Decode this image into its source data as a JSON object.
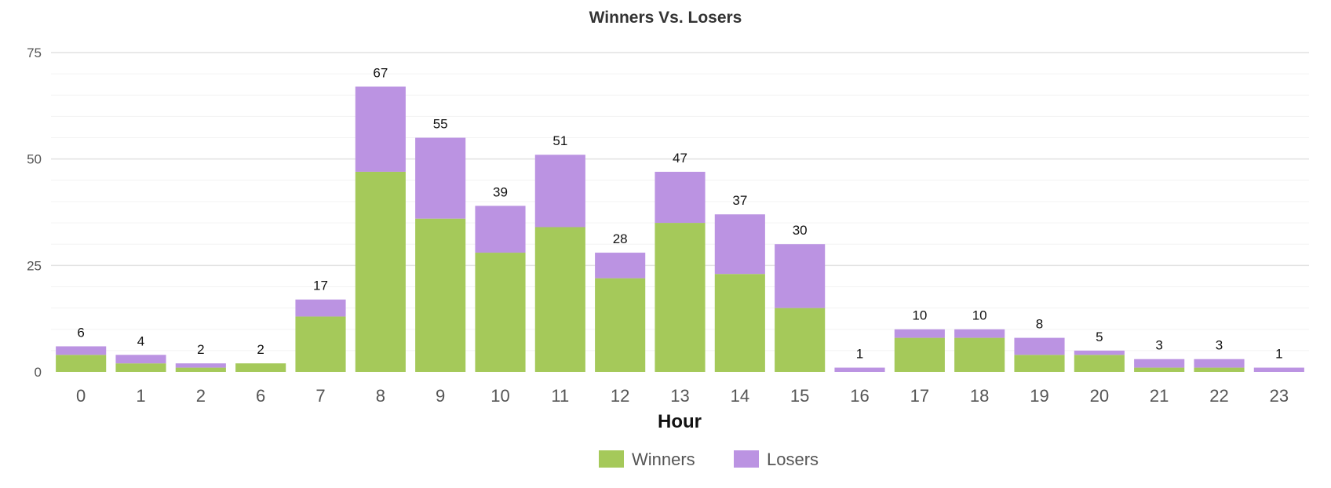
{
  "chart_data": {
    "type": "bar",
    "stacked": true,
    "title": "Winners Vs. Losers",
    "xlabel": "Hour",
    "ylabel": "",
    "ylim": [
      0,
      75
    ],
    "yticks": [
      0,
      25,
      50,
      75
    ],
    "grid": true,
    "legend_position": "bottom-center",
    "categories": [
      "0",
      "1",
      "2",
      "6",
      "7",
      "8",
      "9",
      "10",
      "11",
      "12",
      "13",
      "14",
      "15",
      "16",
      "17",
      "18",
      "19",
      "20",
      "21",
      "22",
      "23"
    ],
    "series": [
      {
        "name": "Winners",
        "color": "#a5c95a",
        "values": [
          4,
          2,
          1,
          2,
          13,
          47,
          36,
          28,
          34,
          22,
          35,
          23,
          15,
          0,
          8,
          8,
          4,
          4,
          1,
          1,
          0
        ]
      },
      {
        "name": "Losers",
        "color": "#bb93e2",
        "values": [
          2,
          2,
          1,
          0,
          4,
          20,
          19,
          11,
          17,
          6,
          12,
          14,
          15,
          1,
          2,
          2,
          4,
          1,
          2,
          2,
          1
        ]
      }
    ],
    "totals": [
      6,
      4,
      2,
      2,
      17,
      67,
      55,
      39,
      51,
      28,
      47,
      37,
      30,
      1,
      10,
      10,
      8,
      5,
      3,
      3,
      1
    ]
  }
}
